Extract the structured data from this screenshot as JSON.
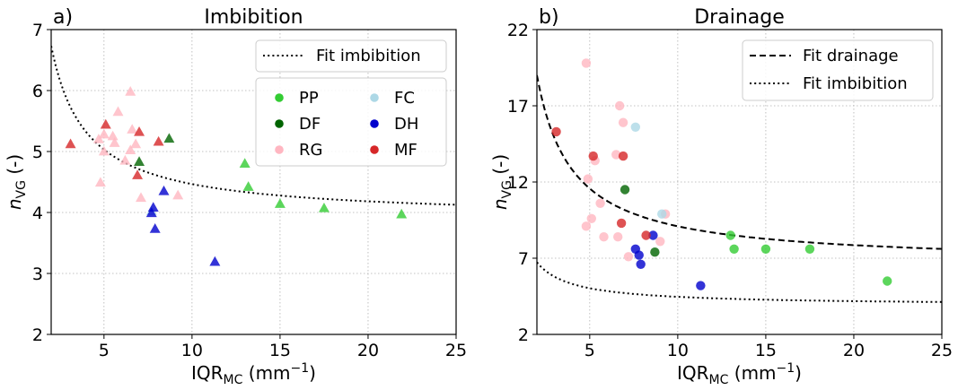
{
  "chart_data": [
    {
      "type": "scatter",
      "panel_label": "a)",
      "title": "Imbibition",
      "xlabel_main": "IQR",
      "xlabel_sub": "MC",
      "xlabel_unit": " (mm",
      "xlabel_exp": "−1",
      "xlabel_close": ")",
      "ylabel_italic": "n",
      "ylabel_sub": "VG",
      "ylabel_unit": " (-)",
      "xlim": [
        2,
        25
      ],
      "ylim": [
        2,
        7
      ],
      "xticks": [
        5,
        10,
        15,
        20,
        25
      ],
      "yticks": [
        2,
        3,
        4,
        5,
        6,
        7
      ],
      "grid": true,
      "marker": "triangle",
      "fit_lines": [
        {
          "name": "Fit imbibition",
          "style": "dotted",
          "a": 5.66,
          "b": 3.9
        }
      ],
      "series": [
        {
          "name": "PP",
          "color": "#33cc33",
          "points": [
            [
              13.0,
              4.8
            ],
            [
              13.2,
              4.42
            ],
            [
              15.0,
              4.14
            ],
            [
              17.5,
              4.07
            ],
            [
              21.9,
              3.97
            ]
          ]
        },
        {
          "name": "DF",
          "color": "#006400",
          "points": [
            [
              7.0,
              4.83
            ],
            [
              8.7,
              5.21
            ]
          ]
        },
        {
          "name": "RG",
          "color": "#ffb6c1",
          "points": [
            [
              4.7,
              5.2
            ],
            [
              5.0,
              5.0
            ],
            [
              5.5,
              5.25
            ],
            [
              5.6,
              5.14
            ],
            [
              5.8,
              5.65
            ],
            [
              6.2,
              4.85
            ],
            [
              6.5,
              5.98
            ],
            [
              6.6,
              5.36
            ],
            [
              6.8,
              5.12
            ],
            [
              7.1,
              4.24
            ],
            [
              9.2,
              4.28
            ],
            [
              4.8,
              4.49
            ],
            [
              6.5,
              5.02
            ],
            [
              5.0,
              5.28
            ]
          ]
        },
        {
          "name": "FC",
          "color": "#add8e6",
          "points": [
            [
              7.7,
              4.02
            ]
          ]
        },
        {
          "name": "DH",
          "color": "#0000cd",
          "points": [
            [
              7.7,
              3.99
            ],
            [
              7.8,
              4.08
            ],
            [
              7.9,
              3.73
            ],
            [
              8.4,
              4.35
            ],
            [
              11.3,
              3.19
            ]
          ]
        },
        {
          "name": "MF",
          "color": "#d62728",
          "points": [
            [
              3.1,
              5.12
            ],
            [
              5.1,
              5.44
            ],
            [
              6.9,
              4.61
            ],
            [
              7.0,
              5.32
            ],
            [
              8.1,
              5.16
            ]
          ]
        }
      ]
    },
    {
      "type": "scatter",
      "panel_label": "b)",
      "title": "Drainage",
      "xlabel_main": "IQR",
      "xlabel_sub": "MC",
      "xlabel_unit": " (mm",
      "xlabel_exp": "−1",
      "xlabel_close": ")",
      "ylabel_italic": "n",
      "ylabel_sub": "VG",
      "ylabel_unit": " (-)",
      "xlim": [
        2,
        25
      ],
      "ylim": [
        2,
        22
      ],
      "xticks": [
        5,
        10,
        15,
        20,
        25
      ],
      "yticks": [
        2,
        7,
        12,
        17,
        22
      ],
      "grid": true,
      "marker": "circle",
      "fit_lines": [
        {
          "name": "Fit drainage",
          "style": "dashed",
          "a": 24.76,
          "b": 6.62
        },
        {
          "name": "Fit imbibition",
          "style": "dotted",
          "a": 5.66,
          "b": 3.9
        }
      ],
      "series": [
        {
          "name": "PP",
          "color": "#33cc33",
          "points": [
            [
              13.0,
              8.5
            ],
            [
              13.2,
              7.6
            ],
            [
              15.0,
              7.6
            ],
            [
              17.5,
              7.6
            ],
            [
              21.9,
              5.5
            ]
          ]
        },
        {
          "name": "DF",
          "color": "#006400",
          "points": [
            [
              7.0,
              11.5
            ],
            [
              8.7,
              7.4
            ]
          ]
        },
        {
          "name": "RG",
          "color": "#ffb6c1",
          "points": [
            [
              4.8,
              19.8
            ],
            [
              4.9,
              12.2
            ],
            [
              4.8,
              9.1
            ],
            [
              5.1,
              9.6
            ],
            [
              5.3,
              13.4
            ],
            [
              5.6,
              10.6
            ],
            [
              5.8,
              8.4
            ],
            [
              6.5,
              13.8
            ],
            [
              6.6,
              8.4
            ],
            [
              6.7,
              17.0
            ],
            [
              6.9,
              15.9
            ],
            [
              7.2,
              7.1
            ],
            [
              9.0,
              8.1
            ],
            [
              9.3,
              9.9
            ]
          ]
        },
        {
          "name": "FC",
          "color": "#add8e6",
          "points": [
            [
              7.6,
              15.6
            ],
            [
              9.1,
              9.9
            ]
          ]
        },
        {
          "name": "DH",
          "color": "#0000cd",
          "points": [
            [
              7.6,
              7.6
            ],
            [
              7.8,
              7.2
            ],
            [
              7.9,
              6.6
            ],
            [
              8.6,
              8.5
            ],
            [
              11.3,
              5.2
            ]
          ]
        },
        {
          "name": "MF",
          "color": "#d62728",
          "points": [
            [
              3.1,
              15.3
            ],
            [
              5.2,
              13.7
            ],
            [
              6.8,
              9.3
            ],
            [
              6.9,
              13.7
            ],
            [
              8.2,
              8.5
            ]
          ]
        }
      ]
    }
  ]
}
